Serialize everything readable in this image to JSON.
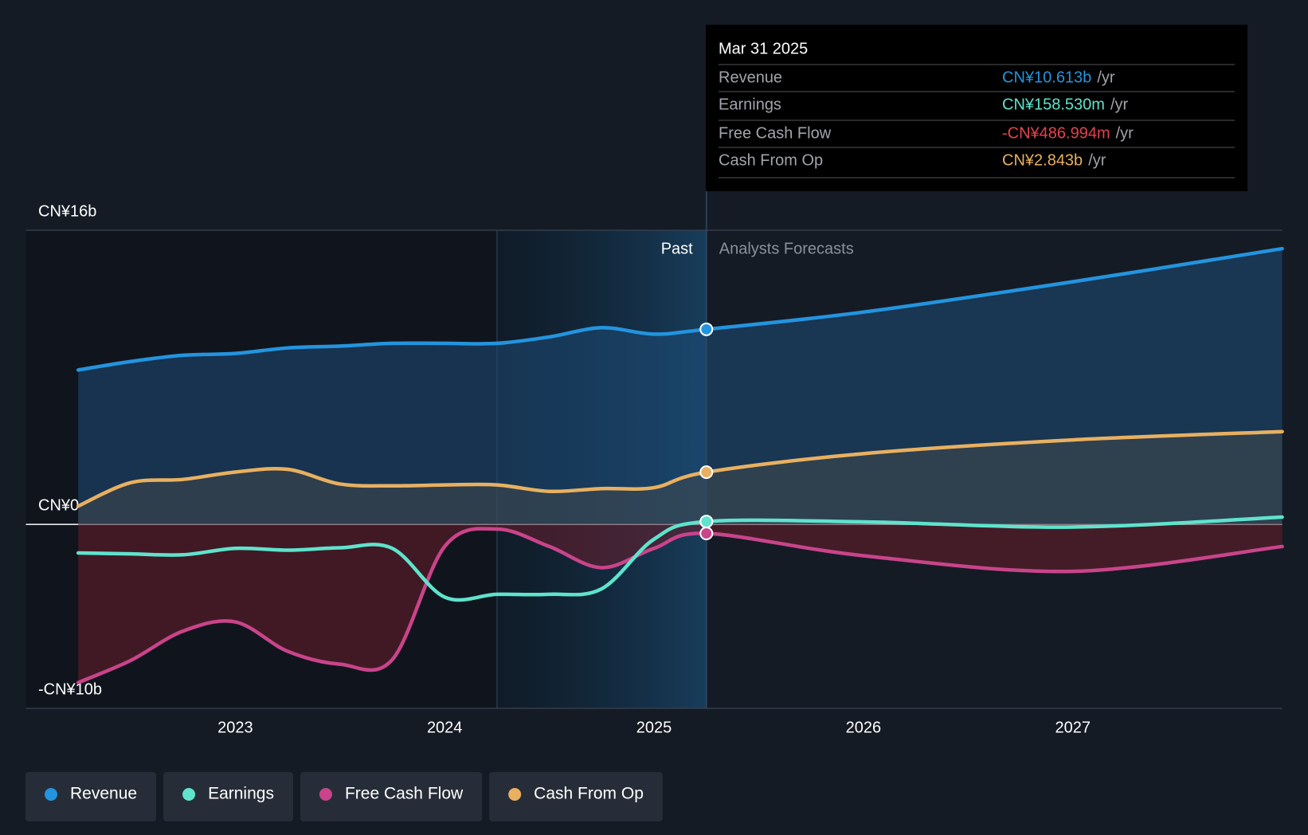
{
  "chart_data": {
    "type": "line",
    "x": [
      2022.25,
      2022.5,
      2022.75,
      2023,
      2023.25,
      2023.5,
      2023.75,
      2024,
      2024.25,
      2024.5,
      2024.75,
      2025,
      2025.25,
      2026,
      2027,
      2028
    ],
    "series": [
      {
        "name": "Revenue",
        "color": "#2394df",
        "values": [
          8.4,
          8.86,
          9.2,
          9.3,
          9.6,
          9.7,
          9.85,
          9.85,
          9.85,
          10.2,
          10.7,
          10.35,
          10.613,
          11.55,
          13.2,
          15.0
        ]
      },
      {
        "name": "Earnings",
        "color": "#5fe3cc",
        "values": [
          -1.55,
          -1.6,
          -1.65,
          -1.3,
          -1.4,
          -1.27,
          -1.3,
          -3.95,
          -3.8,
          -3.8,
          -3.5,
          -0.8,
          0.15853,
          0.14,
          -0.14,
          0.4
        ]
      },
      {
        "name": "Free Cash Flow",
        "color": "#c9448a",
        "values": [
          -8.6,
          -7.4,
          -5.8,
          -5.3,
          -6.9,
          -7.6,
          -7.35,
          -1.2,
          -0.25,
          -1.2,
          -2.35,
          -1.3,
          -0.486994,
          -1.7,
          -2.55,
          -1.2
        ]
      },
      {
        "name": "Cash From Op",
        "color": "#e8b060",
        "values": [
          1.0,
          2.27,
          2.45,
          2.85,
          3.0,
          2.2,
          2.1,
          2.15,
          2.15,
          1.8,
          1.95,
          2.0,
          2.843,
          3.85,
          4.6,
          5.05
        ]
      }
    ],
    "xlim": [
      2022,
      2028
    ],
    "xticks": [
      2023,
      2024,
      2025,
      2026,
      2027
    ],
    "ylim": [
      -10,
      16
    ],
    "yticks": [
      {
        "value": -10,
        "label": "-CN¥10b"
      },
      {
        "value": 0,
        "label": "CN¥0"
      },
      {
        "value": 16,
        "label": "CN¥16b"
      }
    ],
    "past_label": "Past",
    "forecast_label": "Analysts Forecasts",
    "forecast_start": 2025.25,
    "highlight": [
      2024.25,
      2025.25
    ],
    "tooltip": {
      "title": "Mar 31 2025",
      "index": 12,
      "unit": "/yr",
      "labels": [
        "CN¥10.613b",
        "CN¥158.530m",
        "-CN¥486.994m",
        "CN¥2.843b"
      ],
      "colors": [
        "#2394df",
        "#5fe3cc",
        "#e5424d",
        "#e8b060"
      ]
    }
  }
}
